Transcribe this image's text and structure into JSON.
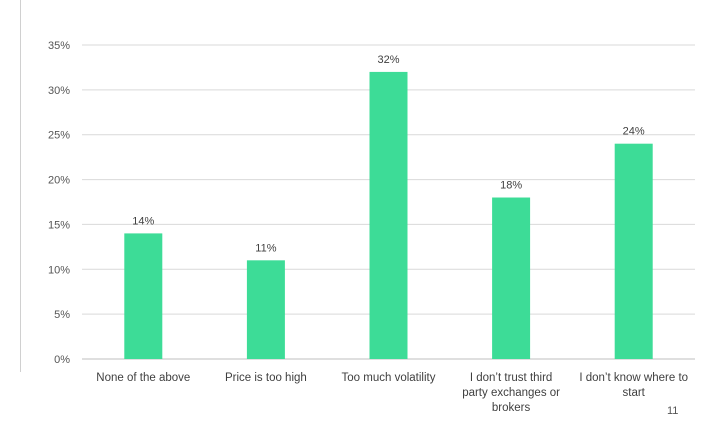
{
  "chart_data": {
    "type": "bar",
    "categories": [
      [
        "None of the above"
      ],
      [
        "Price is too high"
      ],
      [
        "Too much volatility"
      ],
      [
        "I don’t trust third",
        "party exchanges or",
        "brokers"
      ],
      [
        "I don’t know where to",
        "start"
      ]
    ],
    "values": [
      14,
      11,
      32,
      18,
      24
    ],
    "data_labels": [
      "14%",
      "11%",
      "32%",
      "18%",
      "24%"
    ],
    "yticks": [
      "0%",
      "5%",
      "10%",
      "15%",
      "20%",
      "25%",
      "30%",
      "35%"
    ],
    "ylim": [
      0,
      35
    ],
    "grid": true,
    "bar_color": "#3ddc97",
    "title": "",
    "xlabel": "",
    "ylabel": ""
  },
  "footer": {
    "page_number": "11"
  }
}
